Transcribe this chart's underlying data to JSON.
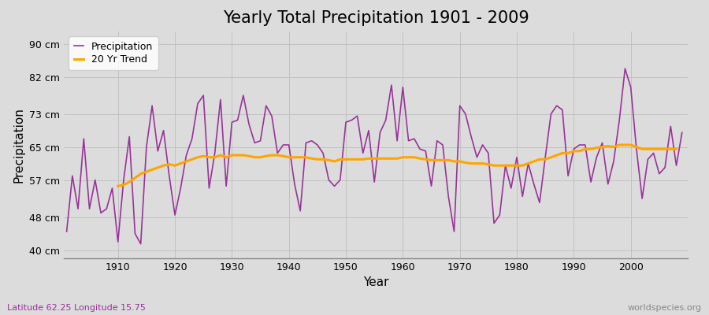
{
  "title": "Yearly Total Precipitation 1901 - 2009",
  "xlabel": "Year",
  "ylabel": "Precipitation",
  "subtitle_left": "Latitude 62.25 Longitude 15.75",
  "subtitle_right": "worldspecies.org",
  "years": [
    1901,
    1902,
    1903,
    1904,
    1905,
    1906,
    1907,
    1908,
    1909,
    1910,
    1911,
    1912,
    1913,
    1914,
    1915,
    1916,
    1917,
    1918,
    1919,
    1920,
    1921,
    1922,
    1923,
    1924,
    1925,
    1926,
    1927,
    1928,
    1929,
    1930,
    1931,
    1932,
    1933,
    1934,
    1935,
    1936,
    1937,
    1938,
    1939,
    1940,
    1941,
    1942,
    1943,
    1944,
    1945,
    1946,
    1947,
    1948,
    1949,
    1950,
    1951,
    1952,
    1953,
    1954,
    1955,
    1956,
    1957,
    1958,
    1959,
    1960,
    1961,
    1962,
    1963,
    1964,
    1965,
    1966,
    1967,
    1968,
    1969,
    1970,
    1971,
    1972,
    1973,
    1974,
    1975,
    1976,
    1977,
    1978,
    1979,
    1980,
    1981,
    1982,
    1983,
    1984,
    1985,
    1986,
    1987,
    1988,
    1989,
    1990,
    1991,
    1992,
    1993,
    1994,
    1995,
    1996,
    1997,
    1998,
    1999,
    2000,
    2001,
    2002,
    2003,
    2004,
    2005,
    2006,
    2007,
    2008,
    2009
  ],
  "precipitation": [
    44.5,
    58.0,
    50.0,
    67.0,
    50.0,
    57.0,
    49.0,
    50.0,
    55.0,
    42.0,
    57.0,
    67.5,
    44.0,
    41.5,
    65.0,
    75.0,
    64.0,
    69.0,
    58.0,
    48.5,
    55.0,
    63.0,
    67.0,
    75.5,
    77.5,
    55.0,
    63.5,
    76.5,
    55.5,
    71.0,
    71.5,
    77.5,
    70.5,
    66.0,
    66.5,
    75.0,
    72.5,
    63.5,
    65.5,
    65.5,
    56.0,
    49.5,
    66.0,
    66.5,
    65.5,
    63.5,
    57.0,
    55.5,
    57.0,
    71.0,
    71.5,
    72.5,
    63.5,
    69.0,
    56.5,
    68.5,
    71.5,
    80.0,
    66.5,
    79.5,
    66.5,
    67.0,
    64.5,
    64.0,
    55.5,
    66.5,
    65.5,
    53.0,
    44.5,
    75.0,
    73.0,
    67.5,
    62.5,
    65.5,
    63.5,
    46.5,
    48.5,
    60.5,
    55.0,
    62.5,
    53.0,
    61.0,
    56.0,
    51.5,
    62.5,
    73.0,
    75.0,
    74.0,
    58.0,
    64.5,
    65.5,
    65.5,
    56.5,
    62.5,
    66.0,
    56.0,
    61.5,
    71.5,
    84.0,
    79.5,
    64.5,
    52.5,
    62.0,
    63.5,
    58.5,
    60.0,
    70.0,
    60.5,
    68.5
  ],
  "trend": [
    null,
    null,
    null,
    null,
    null,
    null,
    null,
    null,
    null,
    55.5,
    55.8,
    56.5,
    57.5,
    58.5,
    59.0,
    59.5,
    60.0,
    60.5,
    60.8,
    60.5,
    61.0,
    61.5,
    62.0,
    62.5,
    62.8,
    62.5,
    62.5,
    63.0,
    62.5,
    63.0,
    63.0,
    63.0,
    62.8,
    62.5,
    62.5,
    62.8,
    63.0,
    63.0,
    62.8,
    62.5,
    62.5,
    62.5,
    62.5,
    62.2,
    62.0,
    62.0,
    61.8,
    61.5,
    62.0,
    62.0,
    62.0,
    62.0,
    62.0,
    62.2,
    62.2,
    62.2,
    62.2,
    62.2,
    62.2,
    62.5,
    62.5,
    62.5,
    62.2,
    62.0,
    61.8,
    61.8,
    61.8,
    61.8,
    61.5,
    61.5,
    61.2,
    61.0,
    61.0,
    61.0,
    60.8,
    60.5,
    60.5,
    60.5,
    60.5,
    60.5,
    60.5,
    61.0,
    61.5,
    62.0,
    62.0,
    62.5,
    63.0,
    63.5,
    63.5,
    64.0,
    64.0,
    64.5,
    64.5,
    64.8,
    65.0,
    65.2,
    65.0,
    65.5,
    65.5,
    65.5,
    65.0,
    64.5,
    64.5,
    64.5,
    64.5,
    64.5,
    64.5,
    64.5,
    null
  ],
  "precip_color": "#993399",
  "trend_color": "#FFA500",
  "bg_color": "#dcdcdc",
  "yticks": [
    40,
    48,
    57,
    65,
    73,
    82,
    90
  ],
  "ytick_labels": [
    "40 cm",
    "48 cm",
    "57 cm",
    "65 cm",
    "73 cm",
    "82 cm",
    "90 cm"
  ],
  "ylim": [
    38,
    93
  ],
  "xlim": [
    1900.5,
    2010
  ],
  "xticks": [
    1910,
    1920,
    1930,
    1940,
    1950,
    1960,
    1970,
    1980,
    1990,
    2000
  ],
  "title_fontsize": 15,
  "axis_label_fontsize": 11,
  "tick_fontsize": 9,
  "legend_fontsize": 9
}
